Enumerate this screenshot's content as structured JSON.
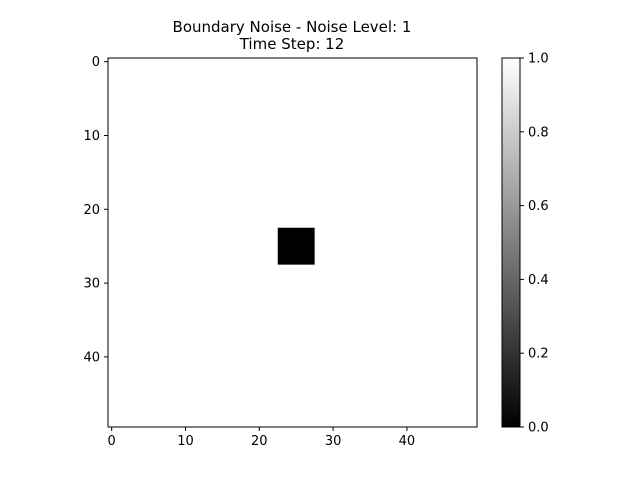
{
  "chart_data": {
    "type": "heatmap",
    "title": [
      "Boundary Noise - Noise Level: 1",
      "Time Step: 12"
    ],
    "xlabel": "",
    "ylabel": "",
    "grid_size": [
      50,
      50
    ],
    "xlim": [
      -0.5,
      49.5
    ],
    "ylim": [
      49.5,
      -0.5
    ],
    "x_ticks": [
      0,
      10,
      20,
      30,
      40
    ],
    "y_ticks": [
      0,
      10,
      20,
      30,
      40
    ],
    "background_value": 1.0,
    "cells": [
      {
        "x_range": [
          23,
          27
        ],
        "y_range": [
          23,
          27
        ],
        "value": 0.0
      }
    ],
    "colormap": "gray",
    "colorbar": {
      "range": [
        0.0,
        1.0
      ],
      "ticks": [
        0.0,
        0.2,
        0.4,
        0.6,
        0.8,
        1.0
      ],
      "tick_labels": [
        "0.0",
        "0.2",
        "0.4",
        "0.6",
        "0.8",
        "1.0"
      ],
      "placement": "right"
    },
    "grid": false
  }
}
